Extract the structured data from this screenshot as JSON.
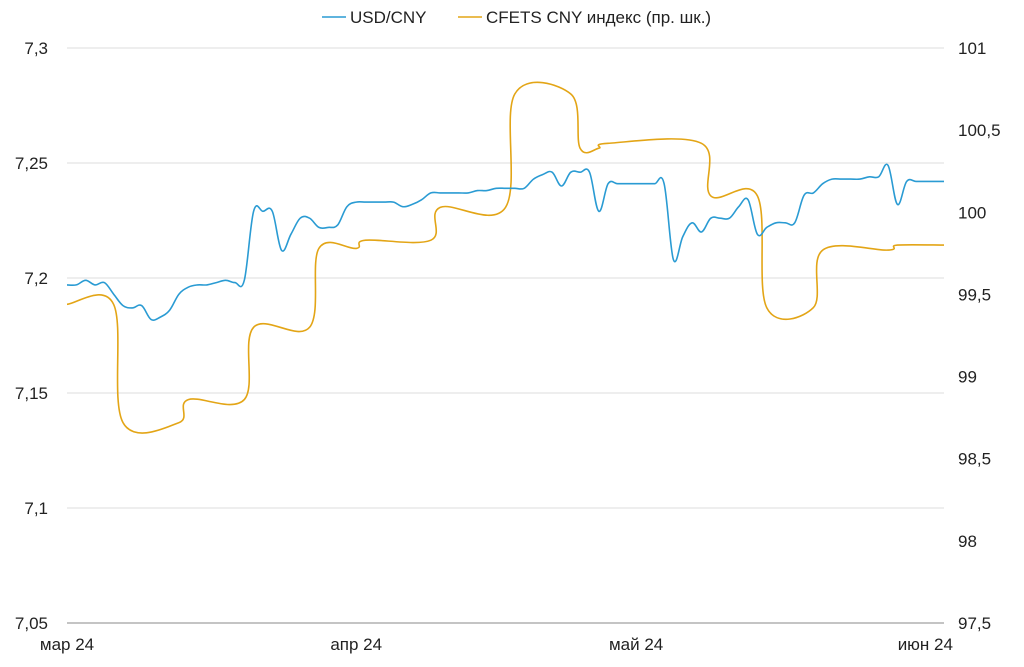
{
  "chart_data": {
    "type": "line",
    "title": "",
    "legend": {
      "position": "top"
    },
    "grid": true,
    "colors": {
      "usd_cny": "#2a9bd3",
      "cfets": "#e3a516",
      "grid": "#dcdcdc"
    },
    "x_axis": {
      "range": [
        "2024-03-01",
        "2024-06-03"
      ],
      "ticks": [
        {
          "date": "2024-03-01",
          "label": "мар 24"
        },
        {
          "date": "2024-04-01",
          "label": "апр 24"
        },
        {
          "date": "2024-05-01",
          "label": "май 24"
        },
        {
          "date": "2024-06-01",
          "label": "июн 24"
        }
      ]
    },
    "y_left": {
      "range": [
        7.05,
        7.3
      ],
      "ticks": [
        {
          "value": 7.3,
          "label": "7,3"
        },
        {
          "value": 7.25,
          "label": "7,25"
        },
        {
          "value": 7.2,
          "label": "7,2"
        },
        {
          "value": 7.15,
          "label": "7,15"
        },
        {
          "value": 7.1,
          "label": "7,1"
        },
        {
          "value": 7.05,
          "label": "7,05"
        }
      ]
    },
    "y_right": {
      "range": [
        97.5,
        101
      ],
      "ticks": [
        {
          "value": 101,
          "label": "101"
        },
        {
          "value": 100.5,
          "label": "100,5"
        },
        {
          "value": 100,
          "label": "100"
        },
        {
          "value": 99.5,
          "label": "99,5"
        },
        {
          "value": 99,
          "label": "99"
        },
        {
          "value": 98.5,
          "label": "98,5"
        },
        {
          "value": 98,
          "label": "98"
        },
        {
          "value": 97.5,
          "label": "97,5"
        }
      ]
    },
    "series": [
      {
        "name": "USD/CNY",
        "axis": "left",
        "points": [
          [
            "2024-03-01",
            7.197
          ],
          [
            "2024-03-02",
            7.197
          ],
          [
            "2024-03-03",
            7.199
          ],
          [
            "2024-03-04",
            7.197
          ],
          [
            "2024-03-05",
            7.198
          ],
          [
            "2024-03-06",
            7.193
          ],
          [
            "2024-03-07",
            7.188
          ],
          [
            "2024-03-08",
            7.187
          ],
          [
            "2024-03-09",
            7.188
          ],
          [
            "2024-03-10",
            7.182
          ],
          [
            "2024-03-11",
            7.183
          ],
          [
            "2024-03-12",
            7.186
          ],
          [
            "2024-03-13",
            7.193
          ],
          [
            "2024-03-14",
            7.196
          ],
          [
            "2024-03-15",
            7.197
          ],
          [
            "2024-03-16",
            7.197
          ],
          [
            "2024-03-17",
            7.198
          ],
          [
            "2024-03-18",
            7.199
          ],
          [
            "2024-03-19",
            7.198
          ],
          [
            "2024-03-20",
            7.199
          ],
          [
            "2024-03-21",
            7.229
          ],
          [
            "2024-03-22",
            7.229
          ],
          [
            "2024-03-23",
            7.229
          ],
          [
            "2024-03-24",
            7.212
          ],
          [
            "2024-03-25",
            7.219
          ],
          [
            "2024-03-26",
            7.226
          ],
          [
            "2024-03-27",
            7.226
          ],
          [
            "2024-03-28",
            7.222
          ],
          [
            "2024-03-29",
            7.222
          ],
          [
            "2024-03-30",
            7.223
          ],
          [
            "2024-03-31",
            7.231
          ],
          [
            "2024-04-01",
            7.233
          ],
          [
            "2024-04-02",
            7.233
          ],
          [
            "2024-04-03",
            7.233
          ],
          [
            "2024-04-04",
            7.233
          ],
          [
            "2024-04-05",
            7.233
          ],
          [
            "2024-04-06",
            7.231
          ],
          [
            "2024-04-07",
            7.232
          ],
          [
            "2024-04-08",
            7.234
          ],
          [
            "2024-04-09",
            7.237
          ],
          [
            "2024-04-10",
            7.237
          ],
          [
            "2024-04-11",
            7.237
          ],
          [
            "2024-04-12",
            7.237
          ],
          [
            "2024-04-13",
            7.237
          ],
          [
            "2024-04-14",
            7.238
          ],
          [
            "2024-04-15",
            7.238
          ],
          [
            "2024-04-16",
            7.239
          ],
          [
            "2024-04-17",
            7.239
          ],
          [
            "2024-04-18",
            7.239
          ],
          [
            "2024-04-19",
            7.239
          ],
          [
            "2024-04-20",
            7.243
          ],
          [
            "2024-04-21",
            7.245
          ],
          [
            "2024-04-22",
            7.246
          ],
          [
            "2024-04-23",
            7.24
          ],
          [
            "2024-04-24",
            7.246
          ],
          [
            "2024-04-25",
            7.246
          ],
          [
            "2024-04-26",
            7.246
          ],
          [
            "2024-04-27",
            7.229
          ],
          [
            "2024-04-28",
            7.241
          ],
          [
            "2024-04-29",
            7.241
          ],
          [
            "2024-04-30",
            7.241
          ],
          [
            "2024-05-01",
            7.241
          ],
          [
            "2024-05-02",
            7.241
          ],
          [
            "2024-05-03",
            7.241
          ],
          [
            "2024-05-04",
            7.241
          ],
          [
            "2024-05-05",
            7.208
          ],
          [
            "2024-05-06",
            7.218
          ],
          [
            "2024-05-07",
            7.224
          ],
          [
            "2024-05-08",
            7.22
          ],
          [
            "2024-05-09",
            7.226
          ],
          [
            "2024-05-10",
            7.226
          ],
          [
            "2024-05-11",
            7.226
          ],
          [
            "2024-05-12",
            7.231
          ],
          [
            "2024-05-13",
            7.234
          ],
          [
            "2024-05-14",
            7.219
          ],
          [
            "2024-05-15",
            7.222
          ],
          [
            "2024-05-16",
            7.224
          ],
          [
            "2024-05-17",
            7.224
          ],
          [
            "2024-05-18",
            7.224
          ],
          [
            "2024-05-19",
            7.236
          ],
          [
            "2024-05-20",
            7.237
          ],
          [
            "2024-05-21",
            7.241
          ],
          [
            "2024-05-22",
            7.243
          ],
          [
            "2024-05-23",
            7.243
          ],
          [
            "2024-05-24",
            7.243
          ],
          [
            "2024-05-25",
            7.243
          ],
          [
            "2024-05-26",
            7.244
          ],
          [
            "2024-05-27",
            7.244
          ],
          [
            "2024-05-28",
            7.249
          ],
          [
            "2024-05-29",
            7.232
          ],
          [
            "2024-05-30",
            7.242
          ],
          [
            "2024-05-31",
            7.242
          ],
          [
            "2024-06-01",
            7.242
          ],
          [
            "2024-06-02",
            7.242
          ],
          [
            "2024-06-03",
            7.242
          ]
        ]
      },
      {
        "name": "CFETS CNY индекс (пр. шк.)",
        "axis": "right",
        "points": [
          [
            "2024-03-01",
            99.44
          ],
          [
            "2024-03-06",
            99.44
          ],
          [
            "2024-03-07",
            98.72
          ],
          [
            "2024-03-13",
            98.72
          ],
          [
            "2024-03-14",
            98.86
          ],
          [
            "2024-03-20",
            98.86
          ],
          [
            "2024-03-21",
            99.3
          ],
          [
            "2024-03-27",
            99.3
          ],
          [
            "2024-03-28",
            99.78
          ],
          [
            "2024-04-01",
            99.78
          ],
          [
            "2024-04-02",
            99.83
          ],
          [
            "2024-04-09",
            99.83
          ],
          [
            "2024-04-10",
            100.03
          ],
          [
            "2024-04-17",
            100.03
          ],
          [
            "2024-04-18",
            100.72
          ],
          [
            "2024-04-24",
            100.72
          ],
          [
            "2024-04-25",
            100.39
          ],
          [
            "2024-04-27",
            100.39
          ],
          [
            "2024-04-28",
            100.42
          ],
          [
            "2024-05-08",
            100.42
          ],
          [
            "2024-05-09",
            100.1
          ],
          [
            "2024-05-14",
            100.1
          ],
          [
            "2024-05-15",
            99.42
          ],
          [
            "2024-05-20",
            99.42
          ],
          [
            "2024-05-21",
            99.77
          ],
          [
            "2024-05-28",
            99.77
          ],
          [
            "2024-05-29",
            99.8
          ],
          [
            "2024-06-03",
            99.8
          ]
        ]
      }
    ]
  }
}
